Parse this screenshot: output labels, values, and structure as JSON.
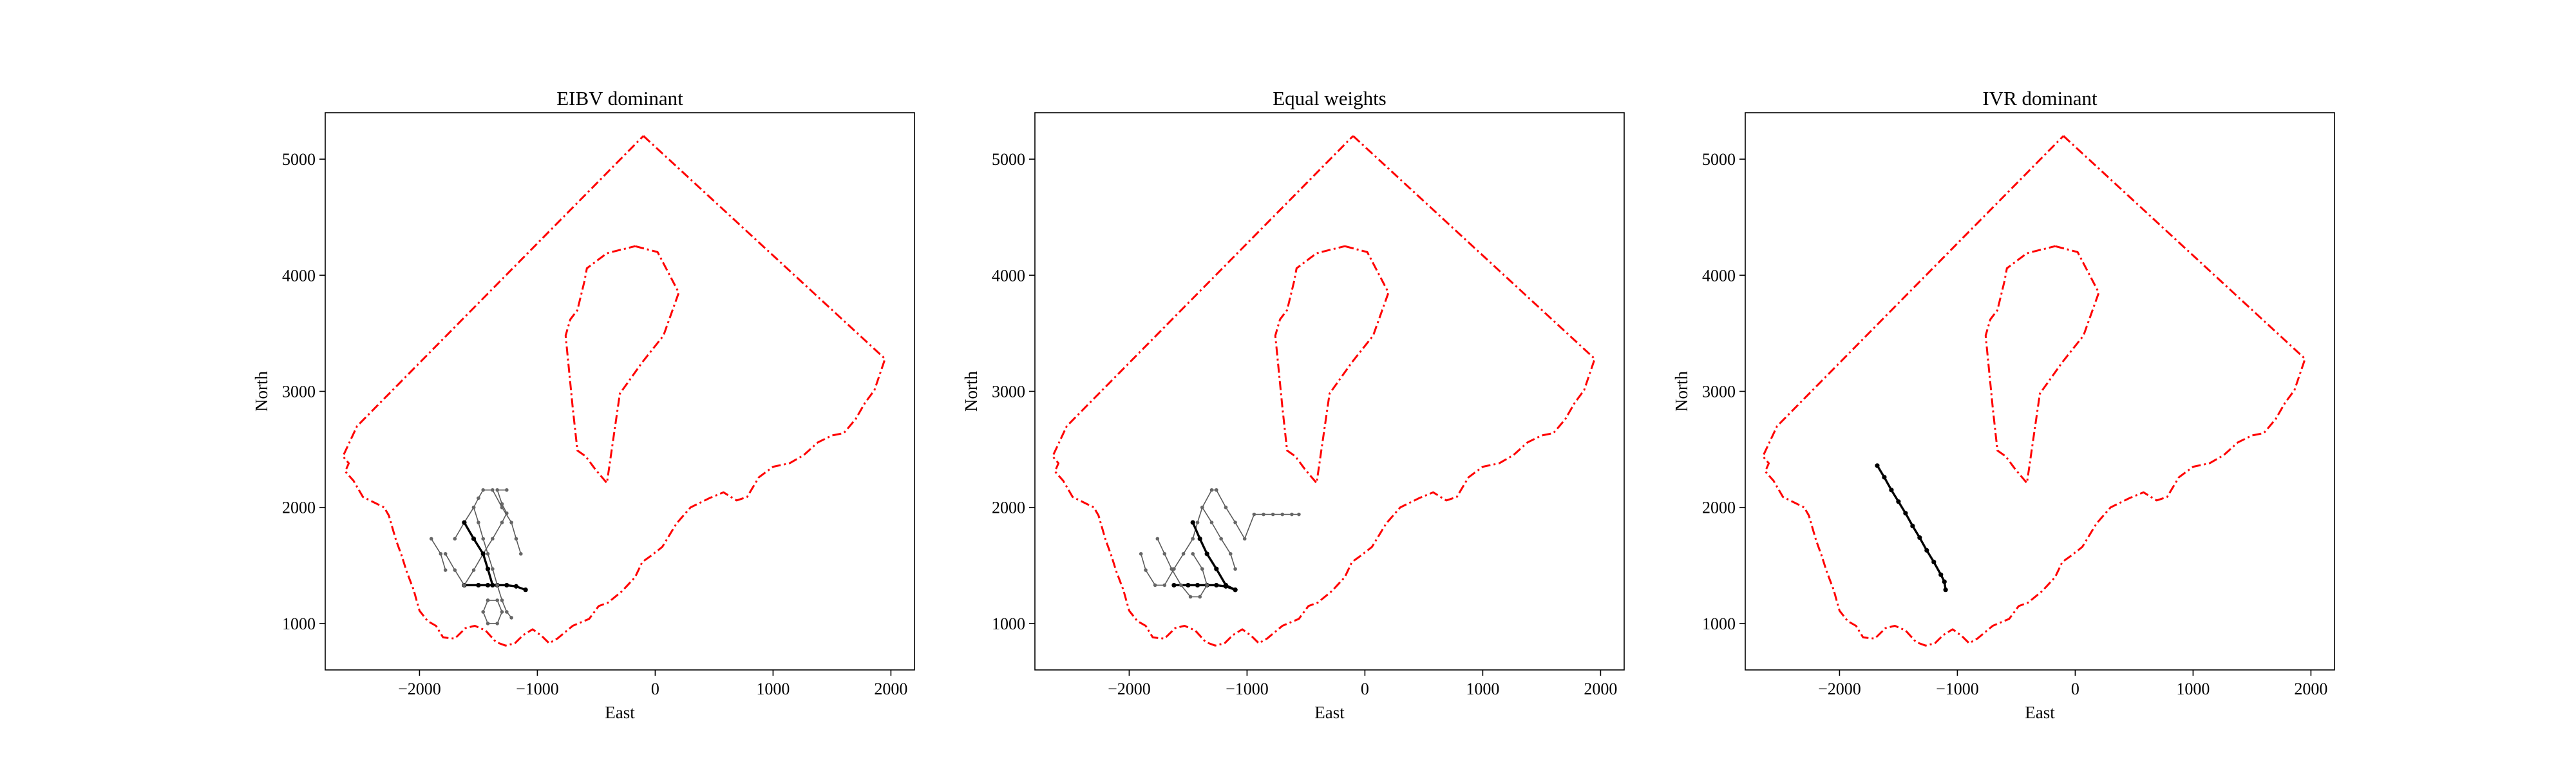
{
  "chart_data": [
    {
      "type": "line",
      "title": "EIBV dominant",
      "xlabel": "East",
      "ylabel": "North",
      "xlim": [
        -2800,
        2200
      ],
      "ylim": [
        600,
        5400
      ],
      "xticks": [
        -2000,
        -1000,
        0,
        1000,
        2000
      ],
      "yticks": [
        1000,
        2000,
        3000,
        4000,
        5000
      ],
      "xtick_labels": [
        "−2000",
        "−1000",
        "0",
        "1000",
        "2000"
      ],
      "ytick_labels": [
        "1000",
        "2000",
        "3000",
        "4000",
        "5000"
      ],
      "grid": false,
      "boundary_color": "#ff0000",
      "path_color": "#000000",
      "paths": [
        {
          "x": [
            -1620,
            -1500,
            -1420,
            -1340,
            -1260,
            -1180,
            -1100
          ],
          "y": [
            1330,
            1330,
            1330,
            1330,
            1330,
            1320,
            1290
          ],
          "style": "bold"
        },
        {
          "x": [
            -1780,
            -1700,
            -1620,
            -1540,
            -1460,
            -1380,
            -1300,
            -1260,
            -1300,
            -1340,
            -1260
          ],
          "y": [
            1600,
            1460,
            1330,
            1460,
            1600,
            1730,
            1870,
            1950,
            2030,
            2150,
            2150
          ],
          "style": "thin"
        },
        {
          "x": [
            -1900,
            -1820,
            -1780
          ],
          "y": [
            1730,
            1600,
            1460
          ],
          "style": "thin"
        },
        {
          "x": [
            -1700,
            -1620,
            -1540,
            -1500,
            -1460,
            -1380,
            -1300,
            -1220,
            -1180,
            -1140
          ],
          "y": [
            1730,
            1870,
            2000,
            2080,
            2150,
            2150,
            2000,
            1870,
            1730,
            1600
          ],
          "style": "thin"
        },
        {
          "x": [
            -1540,
            -1500,
            -1460,
            -1420,
            -1380,
            -1340,
            -1300,
            -1260,
            -1220
          ],
          "y": [
            2000,
            1870,
            1730,
            1600,
            1470,
            1330,
            1200,
            1100,
            1050
          ],
          "style": "thin"
        },
        {
          "x": [
            -1420,
            -1460,
            -1420,
            -1340,
            -1300,
            -1340,
            -1420
          ],
          "y": [
            1200,
            1100,
            1000,
            1000,
            1100,
            1200,
            1200
          ],
          "style": "thin"
        },
        {
          "x": [
            -1620,
            -1540,
            -1460,
            -1420,
            -1380
          ],
          "y": [
            1870,
            1730,
            1600,
            1470,
            1330
          ],
          "style": "bold"
        }
      ]
    },
    {
      "type": "line",
      "title": "Equal weights",
      "xlabel": "East",
      "ylabel": "North",
      "xlim": [
        -2800,
        2200
      ],
      "ylim": [
        600,
        5400
      ],
      "xticks": [
        -2000,
        -1000,
        0,
        1000,
        2000
      ],
      "yticks": [
        1000,
        2000,
        3000,
        4000,
        5000
      ],
      "xtick_labels": [
        "−2000",
        "−1000",
        "0",
        "1000",
        "2000"
      ],
      "ytick_labels": [
        "1000",
        "2000",
        "3000",
        "4000",
        "5000"
      ],
      "grid": false,
      "boundary_color": "#ff0000",
      "path_color": "#000000",
      "paths": [
        {
          "x": [
            -1620,
            -1500,
            -1420,
            -1340,
            -1260,
            -1180,
            -1100
          ],
          "y": [
            1330,
            1330,
            1330,
            1330,
            1330,
            1320,
            1290
          ],
          "style": "bold"
        },
        {
          "x": [
            -1900,
            -1860,
            -1780,
            -1700,
            -1620,
            -1540,
            -1460,
            -1420,
            -1380,
            -1300,
            -1260,
            -1180,
            -1100,
            -1020,
            -940,
            -860,
            -780,
            -700,
            -620,
            -560
          ],
          "y": [
            1600,
            1460,
            1330,
            1330,
            1470,
            1600,
            1730,
            1870,
            2000,
            2150,
            2150,
            2000,
            1870,
            1730,
            1940,
            1940,
            1940,
            1940,
            1940,
            1940
          ],
          "style": "thin"
        },
        {
          "x": [
            -1760,
            -1700,
            -1640,
            -1560,
            -1480,
            -1400,
            -1340,
            -1380,
            -1460
          ],
          "y": [
            1730,
            1600,
            1470,
            1330,
            1230,
            1230,
            1330,
            1470,
            1600
          ],
          "style": "thin"
        },
        {
          "x": [
            -1460,
            -1400,
            -1340,
            -1260,
            -1180,
            -1100
          ],
          "y": [
            1870,
            1730,
            1600,
            1470,
            1330,
            1290
          ],
          "style": "bold"
        },
        {
          "x": [
            -1380,
            -1300,
            -1220,
            -1140,
            -1100
          ],
          "y": [
            2000,
            1870,
            1730,
            1600,
            1470
          ],
          "style": "thin"
        }
      ]
    },
    {
      "type": "line",
      "title": "IVR dominant",
      "xlabel": "East",
      "ylabel": "North",
      "xlim": [
        -2800,
        2200
      ],
      "ylim": [
        600,
        5400
      ],
      "xticks": [
        -2000,
        -1000,
        0,
        1000,
        2000
      ],
      "yticks": [
        1000,
        2000,
        3000,
        4000,
        5000
      ],
      "xtick_labels": [
        "−2000",
        "−1000",
        "0",
        "1000",
        "2000"
      ],
      "ytick_labels": [
        "1000",
        "2000",
        "3000",
        "4000",
        "5000"
      ],
      "grid": false,
      "boundary_color": "#ff0000",
      "path_color": "#000000",
      "paths": [
        {
          "x": [
            -1680,
            -1620,
            -1560,
            -1500,
            -1440,
            -1380,
            -1320,
            -1260,
            -1200,
            -1140,
            -1110,
            -1100
          ],
          "y": [
            2360,
            2260,
            2150,
            2050,
            1950,
            1840,
            1740,
            1630,
            1530,
            1420,
            1360,
            1290
          ],
          "style": "bold"
        }
      ]
    }
  ],
  "boundary": {
    "outer_x": [
      -100,
      1950,
      1860,
      1780,
      1700,
      1600,
      1500,
      1380,
      1260,
      1140,
      1000,
      880,
      780,
      690,
      580,
      460,
      300,
      180,
      60,
      -40,
      -110,
      -170,
      -280,
      -400,
      -480,
      -560,
      -700,
      -830,
      -900,
      -960,
      -1040,
      -1120,
      -1190,
      -1270,
      -1350,
      -1440,
      -1530,
      -1610,
      -1700,
      -1800,
      -1860,
      -1930,
      -2000,
      -2050,
      -2110,
      -2150,
      -2200,
      -2260,
      -2300,
      -2380,
      -2480,
      -2560,
      -2630,
      -2600,
      -2650,
      -2530,
      -100
    ],
    "outer_y": [
      5200,
      3280,
      3010,
      2900,
      2760,
      2640,
      2620,
      2560,
      2450,
      2380,
      2350,
      2260,
      2090,
      2060,
      2130,
      2080,
      2000,
      1860,
      1660,
      1580,
      1530,
      1400,
      1280,
      1180,
      1150,
      1040,
      980,
      870,
      830,
      890,
      950,
      900,
      830,
      810,
      840,
      940,
      980,
      960,
      870,
      880,
      980,
      1020,
      1110,
      1290,
      1450,
      1580,
      1720,
      1930,
      2000,
      2040,
      2090,
      2230,
      2310,
      2380,
      2440,
      2700,
      5200
    ],
    "inner_x": [
      -170,
      20,
      200,
      70,
      -110,
      -300,
      -410,
      -510,
      -590,
      -660,
      -700,
      -760,
      -720,
      -660,
      -600,
      -580,
      -410,
      -170
    ],
    "inner_y": [
      4250,
      4200,
      3850,
      3480,
      3250,
      2980,
      2210,
      2330,
      2440,
      2490,
      2860,
      3480,
      3620,
      3700,
      3950,
      4060,
      4190,
      4250
    ]
  }
}
